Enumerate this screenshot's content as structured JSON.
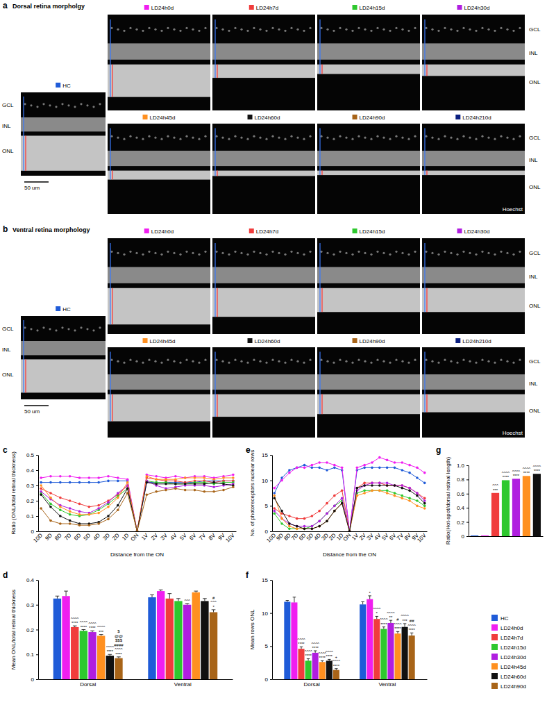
{
  "figure": {
    "image_panels": [
      {
        "letter": "a",
        "title": "Dorsal retina morpholgy",
        "reference": {
          "label": "HC",
          "color": "#1f5bd8"
        },
        "images": [
          {
            "label": "LD24h0d",
            "color": "#f01ef0"
          },
          {
            "label": "LD24h7d",
            "color": "#f03c3c"
          },
          {
            "label": "LD24h15d",
            "color": "#2ec82e"
          },
          {
            "label": "LD24h30d",
            "color": "#b01ee0"
          },
          {
            "label": "LD24h45d",
            "color": "#ff9020"
          },
          {
            "label": "LD24h60d",
            "color": "#111111"
          },
          {
            "label": "LD24h90d",
            "color": "#a86418"
          },
          {
            "label": "LD24h210d",
            "color": "#0b1f80"
          }
        ],
        "layers": [
          "GCL",
          "INL",
          "ONL"
        ],
        "scale_bar": "50 um",
        "stain": "Hoechst"
      },
      {
        "letter": "b",
        "title": "Ventral retina morphology",
        "reference": {
          "label": "HC",
          "color": "#1f5bd8"
        },
        "images": [
          {
            "label": "LD24h0d",
            "color": "#f01ef0"
          },
          {
            "label": "LD24h7d",
            "color": "#f03c3c"
          },
          {
            "label": "LD24h15d",
            "color": "#2ec82e"
          },
          {
            "label": "LD24h30d",
            "color": "#b01ee0"
          },
          {
            "label": "LD24h45d",
            "color": "#ff9020"
          },
          {
            "label": "LD24h60d",
            "color": "#111111"
          },
          {
            "label": "LD24h90d",
            "color": "#a86418"
          },
          {
            "label": "LD24h210d",
            "color": "#0b1f80"
          }
        ],
        "layers": [
          "GCL",
          "INL",
          "ONL"
        ],
        "scale_bar": "50 um",
        "stain": "Hoechst"
      }
    ]
  },
  "chart_data": [
    {
      "type": "line",
      "title": "c",
      "x_label": "Distance from the ON",
      "y_label": "Ratio (ONL/total retinal thickness)",
      "categories": [
        "10D",
        "9D",
        "8D",
        "7D",
        "6D",
        "5D",
        "4D",
        "3D",
        "2D",
        "1D",
        "ON",
        "1V",
        "2V",
        "3V",
        "4V",
        "5V",
        "6V",
        "7V",
        "8V",
        "9V",
        "10V"
      ],
      "ylim": [
        0,
        0.5
      ],
      "yticks": [
        0,
        0.1,
        0.2,
        0.3,
        0.4,
        0.5
      ],
      "marker": "circle",
      "series": [
        {
          "name": "HC",
          "color": "#1f5bd8",
          "values": [
            0.32,
            0.32,
            0.32,
            0.32,
            0.32,
            0.32,
            0.32,
            0.33,
            0.33,
            0.33,
            0,
            0.32,
            0.32,
            0.32,
            0.32,
            0.32,
            0.32,
            0.33,
            0.33,
            0.33,
            0.33
          ]
        },
        {
          "name": "LD24h0d",
          "color": "#f01ef0",
          "values": [
            0.35,
            0.36,
            0.36,
            0.36,
            0.35,
            0.35,
            0.35,
            0.36,
            0.35,
            0.34,
            0,
            0.37,
            0.36,
            0.35,
            0.36,
            0.35,
            0.36,
            0.36,
            0.35,
            0.36,
            0.37
          ]
        },
        {
          "name": "LD24h7d",
          "color": "#f03c3c",
          "values": [
            0.28,
            0.25,
            0.22,
            0.2,
            0.18,
            0.16,
            0.17,
            0.2,
            0.24,
            0.3,
            0,
            0.35,
            0.34,
            0.33,
            0.33,
            0.32,
            0.33,
            0.33,
            0.32,
            0.33,
            0.33
          ]
        },
        {
          "name": "LD24h15d",
          "color": "#2ec82e",
          "values": [
            0.25,
            0.18,
            0.14,
            0.11,
            0.1,
            0.11,
            0.14,
            0.18,
            0.23,
            0.28,
            0,
            0.33,
            0.32,
            0.32,
            0.31,
            0.31,
            0.32,
            0.32,
            0.31,
            0.32,
            0.32
          ]
        },
        {
          "name": "LD24h30d",
          "color": "#b01ee0",
          "values": [
            0.26,
            0.21,
            0.17,
            0.15,
            0.13,
            0.12,
            0.15,
            0.19,
            0.25,
            0.3,
            0,
            0.33,
            0.3,
            0.28,
            0.29,
            0.3,
            0.3,
            0.3,
            0.29,
            0.3,
            0.31
          ]
        },
        {
          "name": "LD24h45d",
          "color": "#ff9020",
          "values": [
            0.3,
            0.22,
            0.16,
            0.13,
            0.11,
            0.11,
            0.12,
            0.16,
            0.22,
            0.32,
            0,
            0.36,
            0.34,
            0.34,
            0.34,
            0.35,
            0.35,
            0.35,
            0.34,
            0.35,
            0.35
          ]
        },
        {
          "name": "LD24h60d",
          "color": "#111111",
          "values": [
            0.24,
            0.16,
            0.1,
            0.07,
            0.05,
            0.05,
            0.06,
            0.1,
            0.17,
            0.28,
            0,
            0.32,
            0.31,
            0.31,
            0.31,
            0.31,
            0.31,
            0.31,
            0.32,
            0.31,
            0.3
          ]
        },
        {
          "name": "LD24h90d",
          "color": "#a86418",
          "values": [
            0.15,
            0.07,
            0.05,
            0.05,
            0.04,
            0.04,
            0.05,
            0.08,
            0.14,
            0.25,
            0,
            0.24,
            0.26,
            0.27,
            0.28,
            0.27,
            0.27,
            0.26,
            0.26,
            0.27,
            0.29
          ]
        }
      ]
    },
    {
      "type": "bar",
      "title": "d",
      "y_label": "Mean ONL/total retinal thickness",
      "categories": [
        "Dorsal",
        "Ventral"
      ],
      "ylim": [
        0,
        0.4
      ],
      "yticks": [
        0,
        0.1,
        0.2,
        0.3,
        0.4
      ],
      "legend": "right",
      "series": [
        {
          "name": "HC",
          "color": "#1f5bd8",
          "values": [
            0.325,
            0.33
          ],
          "errors": [
            0.01,
            0.01
          ],
          "significance": [
            [],
            []
          ]
        },
        {
          "name": "LD24h0d",
          "color": "#f01ef0",
          "values": [
            0.335,
            0.355
          ],
          "errors": [
            0.02,
            0.005
          ],
          "significance": [
            [],
            []
          ]
        },
        {
          "name": "LD24h7d",
          "color": "#f03c3c",
          "values": [
            0.21,
            0.325
          ],
          "errors": [
            0.005,
            0.02
          ],
          "significance": [
            [
              "^^^^",
              "****"
            ],
            []
          ]
        },
        {
          "name": "LD24h15d",
          "color": "#2ec82e",
          "values": [
            0.195,
            0.315
          ],
          "errors": [
            0.005,
            0.01
          ],
          "significance": [
            [
              "^^^^",
              "****"
            ],
            []
          ]
        },
        {
          "name": "LD24h30d",
          "color": "#b01ee0",
          "values": [
            0.19,
            0.3
          ],
          "errors": [
            0.005,
            0.005
          ],
          "significance": [
            [
              "^^^^",
              "****"
            ],
            [
              "^^^"
            ]
          ]
        },
        {
          "name": "LD24h45d",
          "color": "#ff9020",
          "values": [
            0.175,
            0.35
          ],
          "errors": [
            0.005,
            0.005
          ],
          "significance": [
            [
              "^^^^",
              "***"
            ],
            []
          ]
        },
        {
          "name": "LD24h60d",
          "color": "#111111",
          "values": [
            0.095,
            0.315
          ],
          "errors": [
            0.005,
            0.01
          ],
          "significance": [
            [
              "^^^^",
              "****"
            ],
            []
          ]
        },
        {
          "name": "LD24h90d",
          "color": "#a86418",
          "values": [
            0.085,
            0.27
          ],
          "errors": [
            0.005,
            0.01
          ],
          "significance": [
            [
              "$",
              "@@",
              "$$$",
              "####",
              "^^^^",
              "****"
            ],
            [
              "#",
              "^^^",
              "*"
            ]
          ]
        }
      ]
    },
    {
      "type": "line",
      "title": "e",
      "x_label": "Distance from the ON",
      "y_label": "No. of photoreceptors nuclear rows",
      "categories": [
        "10D",
        "9D",
        "8D",
        "7D",
        "6D",
        "5D",
        "4D",
        "3D",
        "2D",
        "1D",
        "ON",
        "1V",
        "2V",
        "3V",
        "4V",
        "5V",
        "6V",
        "7V",
        "8V",
        "9V",
        "10V"
      ],
      "ylim": [
        0,
        15
      ],
      "yticks": [
        0,
        5,
        10,
        15
      ],
      "marker": "circle",
      "series": [
        {
          "name": "HC",
          "color": "#1f5bd8",
          "values": [
            7.5,
            10.5,
            12,
            12.5,
            13,
            12.5,
            12.5,
            12,
            12.5,
            12,
            0,
            12,
            12.5,
            12.5,
            12.5,
            12.5,
            12.5,
            12,
            11.5,
            10.5,
            9.5
          ]
        },
        {
          "name": "LD24h0d",
          "color": "#f01ef0",
          "values": [
            8.5,
            10,
            11.5,
            12.5,
            12.5,
            13,
            13.5,
            13.5,
            13,
            12.5,
            0,
            12.5,
            13,
            13.5,
            14.5,
            14,
            13.5,
            13.5,
            13,
            12.5,
            11.5
          ]
        },
        {
          "name": "LD24h7d",
          "color": "#f03c3c",
          "values": [
            4.5,
            3.5,
            3,
            2.5,
            2.5,
            3,
            4,
            5.5,
            7,
            8,
            0,
            8.5,
            9.5,
            9.5,
            9.5,
            9,
            9,
            9,
            8.5,
            7.5,
            6.5
          ]
        },
        {
          "name": "LD24h15d",
          "color": "#2ec82e",
          "values": [
            3.5,
            1.5,
            0.5,
            0.5,
            0.5,
            1,
            2,
            3.5,
            5,
            6,
            0,
            7.5,
            8,
            8,
            8,
            8,
            7.5,
            7,
            6.5,
            6,
            5
          ]
        },
        {
          "name": "LD24h30d",
          "color": "#b01ee0",
          "values": [
            4,
            2.5,
            1.5,
            1,
            1,
            1,
            2,
            3.5,
            5,
            6.5,
            0,
            8,
            9,
            9.5,
            9.5,
            9.5,
            9,
            9,
            8.5,
            7.5,
            6
          ]
        },
        {
          "name": "LD24h45d",
          "color": "#ff9020",
          "values": [
            7,
            2.5,
            1,
            0.5,
            0.5,
            0.5,
            1,
            2,
            4,
            5.5,
            0,
            7,
            7.5,
            8,
            8,
            7.5,
            7,
            6.5,
            6,
            5,
            4.5
          ]
        },
        {
          "name": "LD24h60d",
          "color": "#111111",
          "values": [
            6.5,
            4,
            1.5,
            1,
            0.5,
            0.5,
            1,
            2,
            4,
            5.5,
            0,
            8.5,
            9,
            9,
            9,
            9,
            9,
            8.5,
            8,
            7,
            5.5
          ]
        }
      ]
    },
    {
      "type": "bar",
      "title": "f",
      "y_label": "Mean rows ONL",
      "categories": [
        "Dorsal",
        "Ventral"
      ],
      "ylim": [
        0,
        15
      ],
      "yticks": [
        0,
        5,
        10,
        15
      ],
      "series": [
        {
          "name": "HC",
          "color": "#1f5bd8",
          "values": [
            11.7,
            11.3
          ],
          "errors": [
            0.2,
            0.4
          ],
          "significance": [
            [],
            []
          ]
        },
        {
          "name": "LD24h0d",
          "color": "#f01ef0",
          "values": [
            11.6,
            12.1
          ],
          "errors": [
            0.8,
            0.5
          ],
          "significance": [
            [],
            [
              "*"
            ]
          ]
        },
        {
          "name": "LD24h7d",
          "color": "#f03c3c",
          "values": [
            4.6,
            9.1
          ],
          "errors": [
            0.3,
            0.4
          ],
          "significance": [
            [
              "^^^^",
              "****"
            ],
            [
              "^^^^",
              "*"
            ]
          ]
        },
        {
          "name": "LD24h15d",
          "color": "#2ec82e",
          "values": [
            2.8,
            7.6
          ],
          "errors": [
            0.3,
            0.3
          ],
          "significance": [
            [
              "^^^^",
              "****"
            ],
            [
              "^^^^",
              "****"
            ]
          ]
        },
        {
          "name": "LD24h30d",
          "color": "#b01ee0",
          "values": [
            4,
            8.5
          ],
          "errors": [
            0.3,
            0.4
          ],
          "significance": [
            [
              "^^^^",
              "****"
            ],
            [
              "^^^^",
              "**"
            ]
          ]
        },
        {
          "name": "LD24h45d",
          "color": "#ff9020",
          "values": [
            2.6,
            6.9
          ],
          "errors": [
            0.2,
            0.3
          ],
          "significance": [
            [
              "^^^^",
              "****"
            ],
            [
              "#",
              "^^^^",
              "****"
            ]
          ]
        },
        {
          "name": "LD24h60d",
          "color": "#111111",
          "values": [
            2.8,
            7.9
          ],
          "errors": [
            0.2,
            0.5
          ],
          "significance": [
            [
              "^^^^",
              "****"
            ],
            [
              "^^^^",
              "***"
            ]
          ]
        },
        {
          "name": "LD24h90d",
          "color": "#a86418",
          "values": [
            1.4,
            6.6
          ],
          "errors": [
            0.2,
            0.4
          ],
          "significance": [
            [
              "+",
              "^^^^",
              "****"
            ],
            [
              "##",
              "^^^^",
              "****"
            ]
          ]
        }
      ]
    },
    {
      "type": "bar",
      "title": "g",
      "y_label": "Ratio(Hot-spot/dorsal retinal length)",
      "categories": [
        null,
        null,
        null,
        null,
        null,
        null,
        null
      ],
      "tick_labels": "y",
      "values": [
        0.01,
        0.01,
        0.61,
        0.79,
        0.81,
        0.85,
        0.88
      ],
      "colors": [
        "#1f5bd8",
        "#f01ef0",
        "#f03c3c",
        "#2ec82e",
        "#b01ee0",
        "#ff9020",
        "#111111"
      ],
      "significance": [
        [],
        [],
        [
          "^^^",
          "***"
        ],
        [
          "^^^^",
          "****"
        ],
        [
          "^^^^",
          "****"
        ],
        [
          "^^^^",
          "****"
        ],
        [
          "^^^^",
          "****"
        ]
      ],
      "ylim": [
        0,
        1
      ],
      "yticks": [
        0,
        0.2,
        0.4,
        0.6,
        0.8,
        {
          "value": 1,
          "label": "1.0"
        }
      ]
    }
  ]
}
